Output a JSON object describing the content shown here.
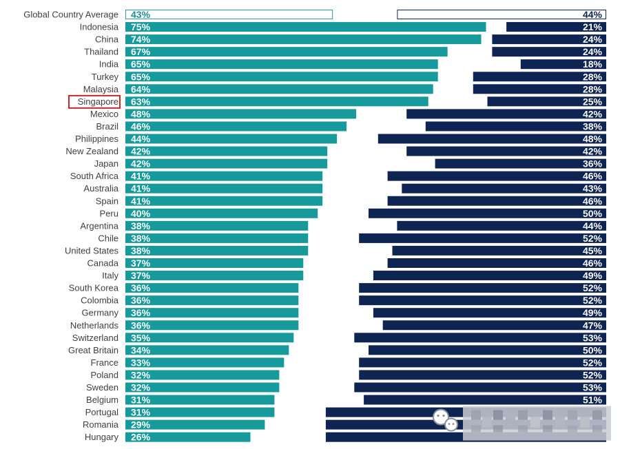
{
  "colors": {
    "teal": "#179a9b",
    "navy": "#0e2452",
    "highlight_box": "#c62828",
    "label_text": "#404040",
    "global_outline_left": "#2a9aa8",
    "global_outline_right": "#0d2451"
  },
  "highlighted_country": "Singapore",
  "chart_data": {
    "type": "bar",
    "orientation": "horizontal",
    "categories": [
      "Global Country Average",
      "Indonesia",
      "China",
      "Thailand",
      "India",
      "Turkey",
      "Malaysia",
      "Singapore",
      "Mexico",
      "Brazil",
      "Philippines",
      "New Zealand",
      "Japan",
      "South Africa",
      "Australia",
      "Spain",
      "Peru",
      "Argentina",
      "Chile",
      "United States",
      "Canada",
      "Italy",
      "South Korea",
      "Colombia",
      "Germany",
      "Netherlands",
      "Switzerland",
      "Great Britain",
      "France",
      "Poland",
      "Sweden",
      "Belgium",
      "Portugal",
      "Romania",
      "Hungary"
    ],
    "series": [
      {
        "color": "#179a9b",
        "values": [
          43,
          75,
          74,
          67,
          65,
          65,
          64,
          63,
          48,
          46,
          44,
          42,
          42,
          41,
          41,
          41,
          40,
          38,
          38,
          38,
          37,
          37,
          36,
          36,
          36,
          36,
          35,
          34,
          33,
          32,
          32,
          31,
          31,
          29,
          26
        ],
        "labels": [
          "43%",
          "75%",
          "74%",
          "67%",
          "65%",
          "65%",
          "64%",
          "63%",
          "48%",
          "46%",
          "44%",
          "42%",
          "42%",
          "41%",
          "41%",
          "41%",
          "40%",
          "38%",
          "38%",
          "38%",
          "37%",
          "37%",
          "36%",
          "36%",
          "36%",
          "36%",
          "35%",
          "34%",
          "33%",
          "32%",
          "32%",
          "31%",
          "31%",
          "29%",
          "26%"
        ]
      },
      {
        "color": "#0e2452",
        "values": [
          44,
          21,
          24,
          24,
          18,
          28,
          28,
          25,
          42,
          38,
          48,
          42,
          36,
          46,
          43,
          46,
          50,
          44,
          52,
          45,
          46,
          49,
          52,
          52,
          49,
          47,
          53,
          50,
          52,
          52,
          53,
          51,
          59,
          59,
          59
        ],
        "labels": [
          "44%",
          "21%",
          "24%",
          "24%",
          "18%",
          "28%",
          "28%",
          "25%",
          "42%",
          "38%",
          "48%",
          "42%",
          "36%",
          "46%",
          "43%",
          "46%",
          "50%",
          "44%",
          "52%",
          "45%",
          "46%",
          "49%",
          "52%",
          "52%",
          "49%",
          "47%",
          "53%",
          "50%",
          "52%",
          "52%",
          "53%",
          "51%",
          "",
          "",
          ""
        ]
      }
    ],
    "outlined_rows": [
      "Global Country Average"
    ],
    "grid": false,
    "legend": "none"
  },
  "watermark": {
    "icon": "wechat-icon"
  }
}
